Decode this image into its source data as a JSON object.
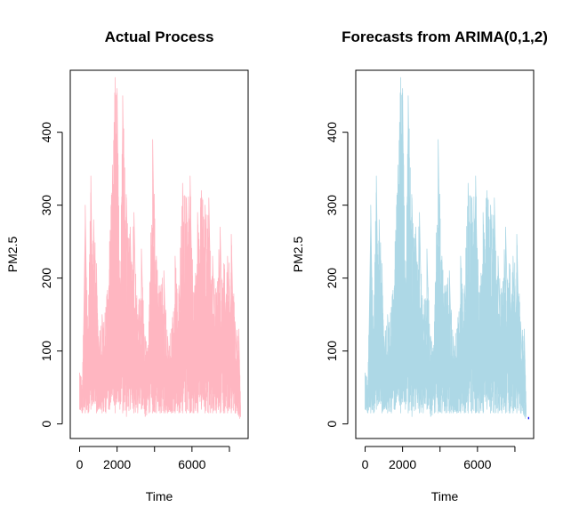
{
  "chart_data": [
    {
      "type": "line",
      "title": "Actual Process",
      "xlabel": "Time",
      "ylabel": "PM2.5",
      "xlim": [
        -500,
        9000
      ],
      "ylim": [
        -20,
        485
      ],
      "x_ticks": [
        0,
        2000,
        4000,
        6000,
        8000
      ],
      "x_tick_labels": [
        "0",
        "2000",
        "",
        "6000",
        ""
      ],
      "y_ticks": [
        0,
        100,
        200,
        300,
        400
      ],
      "y_tick_labels": [
        "0",
        "100",
        "200",
        "300",
        "400"
      ],
      "grid": false,
      "series": [
        {
          "color": "#ffb6c1",
          "x": [
            0,
            150,
            300,
            450,
            600,
            750,
            900,
            1000,
            1200,
            1400,
            1600,
            1750,
            1900,
            2000,
            2150,
            2300,
            2500,
            2700,
            2900,
            3100,
            3300,
            3500,
            3700,
            3900,
            4100,
            4300,
            4500,
            4700,
            4900,
            5100,
            5300,
            5500,
            5700,
            5900,
            6100,
            6300,
            6500,
            6700,
            6900,
            7100,
            7300,
            7500,
            7700,
            7900,
            8100,
            8300,
            8500,
            8600
          ],
          "peaks": [
            70,
            60,
            300,
            130,
            340,
            280,
            220,
            120,
            150,
            160,
            250,
            355,
            475,
            460,
            200,
            450,
            310,
            270,
            290,
            150,
            240,
            120,
            140,
            390,
            230,
            190,
            210,
            120,
            130,
            230,
            190,
            330,
            310,
            340,
            180,
            290,
            320,
            300,
            310,
            230,
            180,
            270,
            220,
            230,
            260,
            140,
            130,
            30
          ],
          "troughs": [
            20,
            15,
            15,
            15,
            20,
            30,
            15,
            20,
            15,
            15,
            20,
            40,
            15,
            30,
            20,
            15,
            10,
            20,
            15,
            15,
            20,
            10,
            15,
            15,
            15,
            15,
            15,
            15,
            15,
            15,
            15,
            15,
            15,
            15,
            15,
            15,
            20,
            15,
            15,
            15,
            15,
            15,
            15,
            15,
            15,
            15,
            10,
            5
          ]
        }
      ]
    },
    {
      "type": "line",
      "title": "Forecasts from ARIMA(0,1,2)",
      "xlabel": "Time",
      "ylabel": "PM2.5",
      "xlim": [
        -500,
        9000
      ],
      "ylim": [
        -20,
        485
      ],
      "x_ticks": [
        0,
        2000,
        4000,
        6000,
        8000
      ],
      "x_tick_labels": [
        "0",
        "2000",
        "",
        "6000",
        ""
      ],
      "y_ticks": [
        0,
        100,
        200,
        300,
        400
      ],
      "y_tick_labels": [
        "0",
        "100",
        "200",
        "300",
        "400"
      ],
      "grid": false,
      "series": [
        {
          "color": "#add8e6",
          "x": [
            0,
            150,
            300,
            450,
            600,
            750,
            900,
            1000,
            1200,
            1400,
            1600,
            1750,
            1900,
            2000,
            2150,
            2300,
            2500,
            2700,
            2900,
            3100,
            3300,
            3500,
            3700,
            3900,
            4100,
            4300,
            4500,
            4700,
            4900,
            5100,
            5300,
            5500,
            5700,
            5900,
            6100,
            6300,
            6500,
            6700,
            6900,
            7100,
            7300,
            7500,
            7700,
            7900,
            8100,
            8300,
            8500,
            8600
          ],
          "peaks": [
            70,
            60,
            300,
            130,
            340,
            280,
            220,
            120,
            150,
            160,
            250,
            355,
            475,
            460,
            200,
            450,
            310,
            270,
            290,
            150,
            240,
            120,
            140,
            390,
            230,
            190,
            210,
            120,
            130,
            230,
            190,
            330,
            310,
            340,
            180,
            290,
            320,
            300,
            310,
            230,
            180,
            270,
            220,
            230,
            260,
            140,
            130,
            30
          ],
          "troughs": [
            20,
            15,
            15,
            15,
            20,
            30,
            15,
            20,
            15,
            15,
            20,
            40,
            15,
            30,
            20,
            15,
            10,
            20,
            15,
            15,
            20,
            10,
            15,
            15,
            15,
            15,
            15,
            15,
            15,
            15,
            15,
            15,
            15,
            15,
            15,
            15,
            20,
            15,
            15,
            15,
            15,
            15,
            15,
            15,
            15,
            15,
            10,
            5
          ]
        },
        {
          "color": "#0000ff",
          "x": [
            8700,
            8760
          ],
          "values": [
            8,
            8
          ]
        }
      ]
    }
  ]
}
